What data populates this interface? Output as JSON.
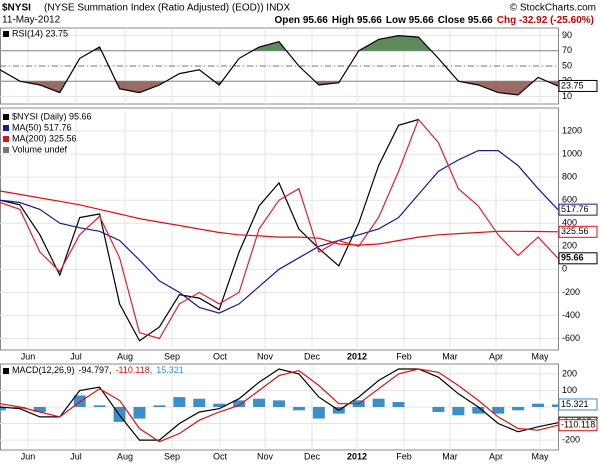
{
  "header": {
    "symbol": "$NYSI",
    "name": "(NYSE Summation Index (Ratio Adjusted) (EOD)) INDX",
    "date": "11-May-2012",
    "quote": [
      "Open 95.66",
      "High 95.66",
      "Low 95.66",
      "Close 95.66"
    ],
    "change": "Chg -32.92 (-25.60%)",
    "credit": "© StockCharts.com"
  },
  "x_axis_labels": [
    "Jun",
    "Jul",
    "Aug",
    "Sep",
    "Oct",
    "Nov",
    "Dec",
    "2012",
    "Feb",
    "Mar",
    "Apr",
    "May"
  ],
  "chart_data": [
    {
      "type": "line",
      "title": "RSI(14) 23.75",
      "ylim": [
        0,
        100
      ],
      "yticks": [
        10,
        30,
        50,
        70,
        90
      ],
      "overbought": 70,
      "oversold": 30,
      "overbought_color": "#5e8a5e",
      "oversold_color": "#9a6b62",
      "series": [
        {
          "color": "#000000",
          "values": [
            45,
            30,
            25,
            15,
            60,
            75,
            20,
            15,
            25,
            40,
            45,
            25,
            60,
            75,
            82,
            50,
            25,
            28,
            70,
            85,
            90,
            88,
            60,
            30,
            25,
            15,
            12,
            35,
            23.75
          ]
        }
      ]
    },
    {
      "type": "line",
      "ylim": [
        -700,
        1400
      ],
      "yticks": [
        -600,
        -400,
        -200,
        0,
        200,
        400,
        600,
        800,
        1000,
        1200
      ],
      "annotations": [
        "Volume undef"
      ],
      "series": [
        {
          "name": "$NYSI (Daily) 95.66",
          "color": "#000000",
          "values": [
            600,
            560,
            300,
            -50,
            450,
            480,
            -300,
            -620,
            -500,
            -220,
            -250,
            -350,
            150,
            550,
            750,
            350,
            180,
            30,
            400,
            900,
            1250,
            1300,
            null,
            null,
            null,
            null,
            null,
            null,
            null
          ]
        },
        {
          "name": "MA(50) 517.76",
          "color": "#1a1a8c",
          "values": [
            600,
            580,
            520,
            400,
            360,
            330,
            250,
            80,
            -100,
            -200,
            -330,
            -380,
            -300,
            -150,
            0,
            100,
            200,
            250,
            300,
            350,
            450,
            650,
            850,
            950,
            1030,
            1030,
            900,
            700,
            517.76
          ]
        },
        {
          "name": "MA(200) 325.56",
          "color": "#dd1111",
          "values": [
            680,
            650,
            620,
            590,
            560,
            520,
            480,
            440,
            410,
            380,
            350,
            320,
            300,
            290,
            280,
            280,
            270,
            220,
            210,
            220,
            250,
            280,
            300,
            310,
            320,
            330,
            330,
            328,
            325.56
          ]
        },
        {
          "color": "#e0202a",
          "values": [
            580,
            520,
            150,
            -20,
            300,
            460,
            100,
            -550,
            -600,
            -300,
            -200,
            -300,
            -200,
            350,
            600,
            700,
            150,
            250,
            200,
            450,
            850,
            1300,
            1100,
            700,
            550,
            300,
            120,
            280,
            95.66
          ]
        }
      ]
    },
    {
      "type": "line",
      "title": "MACD(12,26,9)",
      "ylim": [
        -260,
        260
      ],
      "yticks": [
        -200,
        -100,
        0,
        100,
        200
      ],
      "histogram": {
        "color": "#3a8fc8",
        "values": [
          -20,
          -10,
          -30,
          0,
          70,
          10,
          -90,
          -70,
          10,
          60,
          50,
          20,
          40,
          50,
          40,
          -20,
          -70,
          -40,
          40,
          50,
          30,
          0,
          -30,
          -50,
          -40,
          -40,
          -20,
          20,
          15.321
        ],
        "legend": "15.321"
      },
      "series": [
        {
          "color": "#000000",
          "legend": "-94.797,",
          "values": [
            0,
            -10,
            -60,
            -60,
            100,
            120,
            -50,
            -200,
            -200,
            -100,
            -30,
            -10,
            50,
            150,
            230,
            200,
            60,
            -20,
            60,
            160,
            230,
            230,
            180,
            80,
            0,
            -100,
            -150,
            -120,
            -94.797
          ]
        },
        {
          "color": "#dd1111",
          "legend": "-110.118,",
          "values": [
            20,
            0,
            -30,
            -60,
            30,
            110,
            40,
            -130,
            -210,
            -160,
            -80,
            -30,
            10,
            100,
            190,
            220,
            130,
            20,
            20,
            110,
            200,
            230,
            210,
            130,
            40,
            -60,
            -130,
            -140,
            -110.118
          ]
        }
      ]
    }
  ]
}
